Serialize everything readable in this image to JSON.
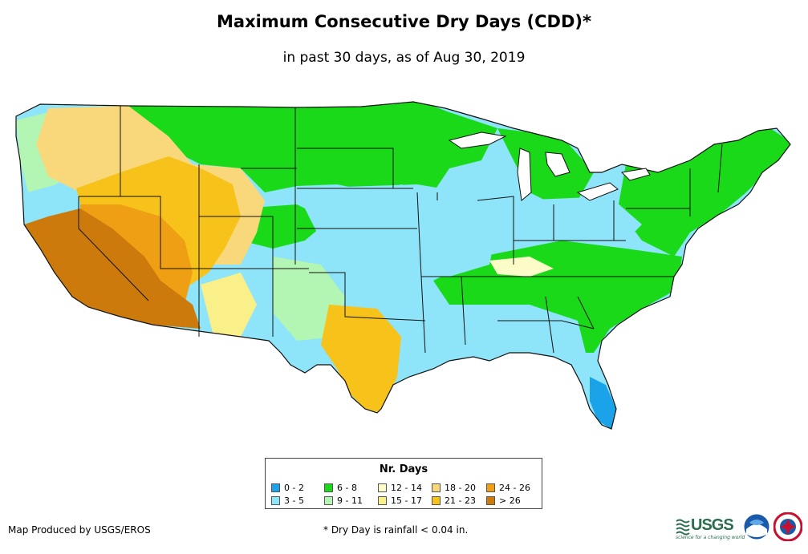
{
  "header": {
    "title": "Maximum Consecutive Dry Days (CDD)*",
    "subtitle": "in past 30 days, as of Aug 30, 2019"
  },
  "legend": {
    "title": "Nr. Days",
    "items": [
      {
        "label": "0 - 2",
        "color": "#1aa3e8"
      },
      {
        "label": "3 - 5",
        "color": "#8ee4f8"
      },
      {
        "label": "6 - 8",
        "color": "#19d919"
      },
      {
        "label": "9 - 11",
        "color": "#b3f5b3"
      },
      {
        "label": "12 - 14",
        "color": "#fcfcc8"
      },
      {
        "label": "15 - 17",
        "color": "#faf08a"
      },
      {
        "label": "18 - 20",
        "color": "#f8d87a"
      },
      {
        "label": "21 - 23",
        "color": "#f7c21a"
      },
      {
        "label": "24 - 26",
        "color": "#ee9f14"
      },
      {
        "label": "> 26",
        "color": "#cc7a0c"
      }
    ]
  },
  "footer": {
    "credit": "Map Produced by USGS/EROS",
    "footnote": "* Dry Day is rainfall < 0.04 in."
  },
  "logos": {
    "usgs": "USGS",
    "usgs_tagline": "science for a changing world",
    "noaa": "noaa"
  }
}
